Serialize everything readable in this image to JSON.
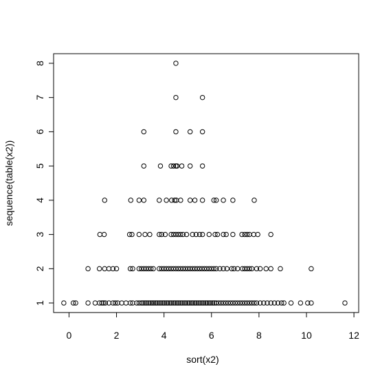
{
  "chart_data": {
    "type": "scatter",
    "title": "",
    "xlabel": "sort(x2)",
    "ylabel": "sequence(table(x2))",
    "xlim": [
      -0.65,
      12.2
    ],
    "ylim": [
      0.72,
      8.28
    ],
    "xticks": [
      0,
      2,
      4,
      6,
      8,
      10,
      12
    ],
    "yticks": [
      1,
      2,
      3,
      4,
      5,
      6,
      7,
      8
    ],
    "xtick_labels": [
      "0",
      "2",
      "4",
      "6",
      "8",
      "10",
      "12"
    ],
    "ytick_labels": [
      "1",
      "2",
      "3",
      "4",
      "5",
      "6",
      "7",
      "8"
    ],
    "marker": "open-circle",
    "grid": false,
    "series": [
      {
        "y": 1,
        "x": [
          -0.22,
          0.18,
          0.28,
          0.8,
          1.1,
          1.28,
          1.38,
          1.45,
          1.53,
          1.68,
          1.85,
          1.95,
          2.05,
          2.22,
          2.4,
          2.58,
          2.68,
          2.85,
          2.95,
          3.05,
          3.12,
          3.2,
          3.27,
          3.35,
          3.43,
          3.5,
          3.57,
          3.65,
          3.72,
          3.8,
          3.87,
          3.95,
          4.02,
          4.1,
          4.17,
          4.25,
          4.32,
          4.4,
          4.47,
          4.55,
          4.62,
          4.7,
          4.77,
          4.85,
          4.92,
          5.0,
          5.07,
          5.15,
          5.22,
          5.3,
          5.37,
          5.45,
          5.52,
          5.6,
          5.67,
          5.75,
          5.82,
          5.9,
          5.97,
          6.05,
          6.12,
          6.2,
          6.3,
          6.4,
          6.5,
          6.6,
          6.7,
          6.8,
          6.9,
          7.0,
          7.1,
          7.2,
          7.3,
          7.4,
          7.5,
          7.6,
          7.7,
          7.8,
          7.9,
          8.05,
          8.2,
          8.35,
          8.5,
          8.65,
          8.8,
          8.95,
          9.05,
          9.35,
          9.75,
          10.05,
          10.2,
          11.62
        ]
      },
      {
        "y": 2,
        "x": [
          0.8,
          1.28,
          1.5,
          1.68,
          1.85,
          2.0,
          2.58,
          2.68,
          2.95,
          3.05,
          3.15,
          3.25,
          3.35,
          3.45,
          3.55,
          3.8,
          3.9,
          4.0,
          4.1,
          4.2,
          4.3,
          4.4,
          4.5,
          4.6,
          4.7,
          4.8,
          4.9,
          5.0,
          5.1,
          5.2,
          5.3,
          5.4,
          5.5,
          5.6,
          5.7,
          5.8,
          5.9,
          6.0,
          6.1,
          6.2,
          6.35,
          6.5,
          6.65,
          6.85,
          6.95,
          7.1,
          7.3,
          7.4,
          7.5,
          7.6,
          7.7,
          7.9,
          8.05,
          8.3,
          8.5,
          8.9,
          10.2
        ]
      },
      {
        "y": 3,
        "x": [
          1.3,
          1.48,
          2.55,
          2.65,
          2.95,
          3.2,
          3.4,
          3.8,
          3.9,
          4.05,
          4.3,
          4.4,
          4.5,
          4.6,
          4.7,
          4.8,
          4.95,
          5.2,
          5.35,
          5.5,
          5.62,
          5.9,
          6.15,
          6.25,
          6.5,
          6.62,
          6.9,
          7.28,
          7.4,
          7.5,
          7.6,
          7.78,
          7.95,
          8.5
        ]
      },
      {
        "y": 4,
        "x": [
          1.5,
          2.6,
          2.95,
          3.15,
          3.8,
          4.1,
          4.32,
          4.45,
          4.52,
          4.7,
          5.1,
          5.3,
          5.62,
          6.1,
          6.2,
          6.5,
          6.9,
          7.8
        ]
      },
      {
        "y": 5,
        "x": [
          3.15,
          3.85,
          4.3,
          4.4,
          4.5,
          4.55,
          4.75,
          5.1,
          5.62
        ]
      },
      {
        "y": 6,
        "x": [
          3.15,
          4.5,
          5.1,
          5.62
        ]
      },
      {
        "y": 7,
        "x": [
          4.5,
          5.62
        ]
      },
      {
        "y": 8,
        "x": [
          4.5
        ]
      }
    ]
  }
}
